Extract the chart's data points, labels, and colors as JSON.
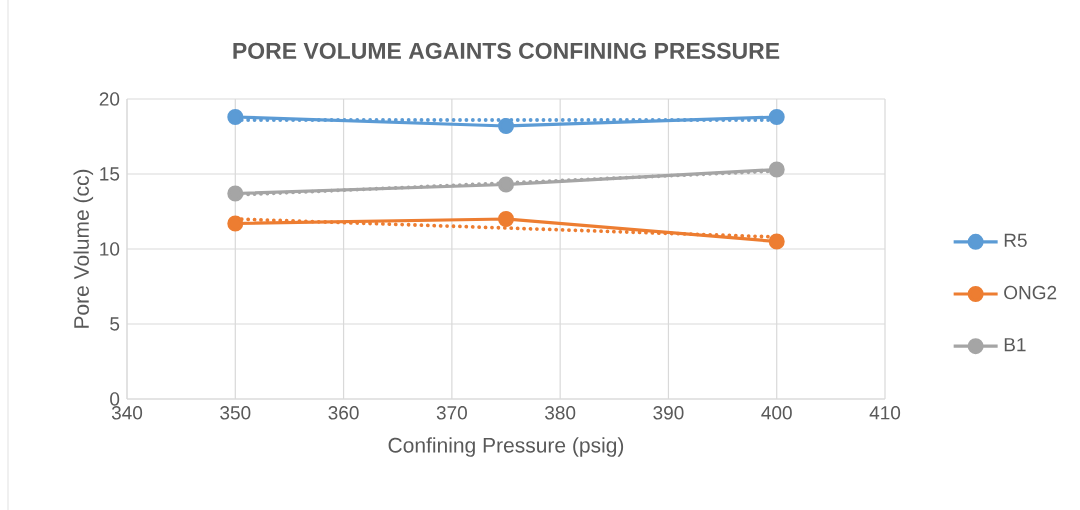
{
  "chart_data": {
    "type": "line",
    "title": "PORE VOLUME AGAINTS CONFINING PRESSURE",
    "xlabel": "Confining Pressure (psig)",
    "ylabel": "Pore Volume (cc)",
    "x": [
      350,
      375,
      400
    ],
    "series": [
      {
        "name": "R5",
        "color": "#5b9bd5",
        "values": [
          18.8,
          18.2,
          18.8
        ],
        "marker": "circle",
        "line_style": "solid"
      },
      {
        "name": "ONG2",
        "color": "#ed7d31",
        "values": [
          11.7,
          12.0,
          10.5
        ],
        "marker": "circle",
        "line_style": "solid"
      },
      {
        "name": "B1",
        "color": "#a5a5a5",
        "values": [
          13.7,
          14.3,
          15.3
        ],
        "marker": "circle",
        "line_style": "solid"
      },
      {
        "type": "line",
        "color": "#5b9bd5",
        "values": [
          18.6,
          18.6,
          18.6
        ],
        "marker": "none",
        "line_style": "dotted"
      },
      {
        "type": "line",
        "color": "#ed7d31",
        "values": [
          12.0,
          11.4,
          10.8
        ],
        "marker": "none",
        "line_style": "dotted"
      },
      {
        "type": "line",
        "color": "#a5a5a5",
        "values": [
          13.6,
          14.4,
          15.2
        ],
        "marker": "none",
        "line_style": "dotted"
      }
    ],
    "xlim": [
      340,
      410
    ],
    "xticks": [
      340,
      350,
      360,
      370,
      380,
      390,
      400,
      410
    ],
    "ylim": [
      0,
      20
    ],
    "yticks": [
      0,
      5,
      10,
      15,
      20
    ],
    "grid": true,
    "legend": "right"
  }
}
